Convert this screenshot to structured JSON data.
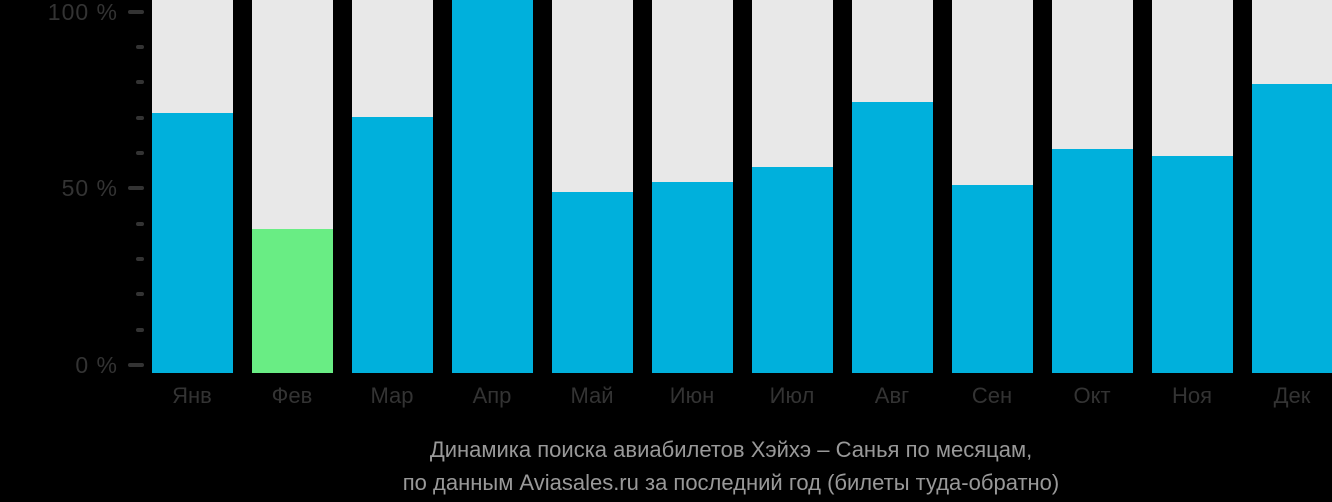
{
  "chart_data": {
    "type": "bar",
    "title": "Динамика поиска авиабилетов Хэйхэ – Санья по месяцам,",
    "subtitle": "по данным Aviasales.ru за последний год (билеты туда-обратно)",
    "categories": [
      "Янв",
      "Фев",
      "Мар",
      "Апр",
      "Май",
      "Июн",
      "Июл",
      "Авг",
      "Сен",
      "Окт",
      "Ноя",
      "Дек"
    ],
    "values": [
      72,
      40,
      71,
      100,
      50,
      53,
      57,
      75,
      52,
      62,
      60,
      80
    ],
    "unit": "%",
    "ylim": [
      0,
      100
    ],
    "ytick_labels": [
      "0 %",
      "50 %",
      "100 %"
    ],
    "ytick_values": [
      0,
      50,
      100
    ],
    "minor_tick_step": 10,
    "grid": false,
    "legend_position": "none",
    "highlight_index": 1,
    "colors": {
      "bar": "#00b0dc",
      "highlight": "#69ed84",
      "track": "#e8e8e8",
      "background": "#000000",
      "axis_text": "#333333",
      "tick": "#333333",
      "title_text": "#999999"
    }
  }
}
